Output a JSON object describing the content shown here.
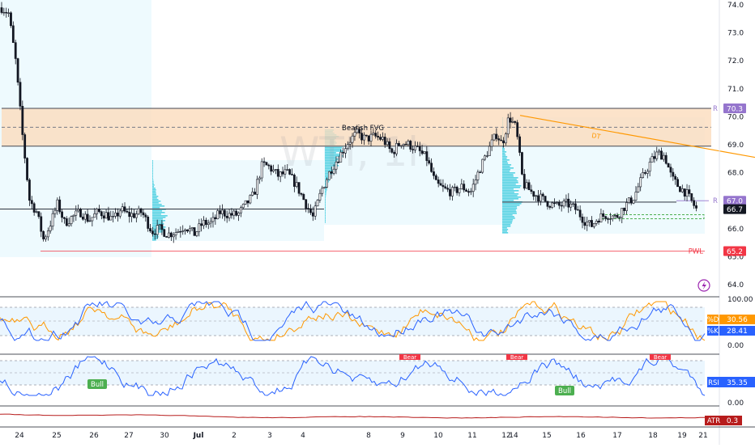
{
  "chart_data": {
    "type": "candlestick",
    "symbol_watermark": "WTI, 1h",
    "price_axis": {
      "ticks": [
        "74.0",
        "73.0",
        "72.0",
        "71.0",
        "70.0",
        "69.0",
        "68.0",
        "67.0",
        "66.0",
        "65.0",
        "64.0"
      ],
      "range": [
        63.7,
        74.2
      ]
    },
    "x_axis": {
      "labels": [
        "24",
        "25",
        "26",
        "27",
        "30",
        "Jul",
        "2",
        "3",
        "4",
        "8",
        "9",
        "10",
        "11",
        "12",
        "14",
        "15",
        "16",
        "17",
        "18",
        "19",
        "21"
      ]
    },
    "price_series_anchors": [
      [
        0.0,
        73.9
      ],
      [
        0.4,
        73.7
      ],
      [
        0.8,
        72.0
      ],
      [
        1.2,
        69.3
      ],
      [
        1.6,
        67.0
      ],
      [
        2.0,
        66.6
      ],
      [
        2.4,
        65.6
      ],
      [
        2.8,
        66.2
      ],
      [
        3.2,
        66.9
      ],
      [
        3.6,
        66.2
      ],
      [
        4.0,
        66.4
      ],
      [
        4.5,
        66.6
      ],
      [
        5.0,
        66.3
      ],
      [
        5.5,
        66.6
      ],
      [
        6.0,
        66.5
      ],
      [
        6.4,
        66.3
      ],
      [
        6.8,
        66.7
      ],
      [
        7.2,
        66.5
      ],
      [
        7.6,
        66.5
      ],
      [
        8.0,
        66.6
      ],
      [
        8.6,
        65.9
      ],
      [
        9.0,
        66.0
      ],
      [
        9.5,
        65.8
      ],
      [
        10.0,
        65.9
      ],
      [
        10.5,
        66.1
      ],
      [
        11.0,
        65.8
      ],
      [
        11.5,
        66.2
      ],
      [
        12.0,
        66.2
      ],
      [
        12.5,
        66.6
      ],
      [
        13.0,
        66.5
      ],
      [
        13.5,
        66.5
      ],
      [
        14.0,
        66.9
      ],
      [
        14.4,
        67.2
      ],
      [
        14.9,
        68.3
      ],
      [
        15.3,
        68.2
      ],
      [
        15.8,
        67.9
      ],
      [
        16.3,
        68.0
      ],
      [
        16.8,
        67.6
      ],
      [
        17.3,
        67.0
      ],
      [
        17.8,
        66.4
      ],
      [
        18.3,
        67.4
      ],
      [
        18.8,
        68.1
      ],
      [
        19.3,
        68.6
      ],
      [
        19.8,
        69.1
      ],
      [
        20.3,
        69.4
      ],
      [
        20.8,
        69.2
      ],
      [
        21.3,
        69.3
      ],
      [
        21.8,
        69.2
      ],
      [
        22.3,
        68.7
      ],
      [
        22.8,
        69.1
      ],
      [
        23.3,
        69.0
      ],
      [
        23.8,
        68.8
      ],
      [
        24.3,
        68.5
      ],
      [
        24.8,
        67.6
      ],
      [
        25.3,
        67.4
      ],
      [
        25.8,
        67.3
      ],
      [
        26.3,
        67.5
      ],
      [
        26.8,
        67.3
      ],
      [
        27.3,
        68.1
      ],
      [
        27.8,
        68.8
      ],
      [
        28.3,
        69.4
      ],
      [
        28.6,
        69.0
      ],
      [
        29.0,
        70.0
      ],
      [
        29.4,
        69.6
      ],
      [
        29.8,
        67.6
      ],
      [
        30.3,
        67.3
      ],
      [
        30.8,
        67.1
      ],
      [
        31.3,
        66.9
      ],
      [
        31.8,
        66.8
      ],
      [
        32.3,
        66.9
      ],
      [
        32.8,
        66.7
      ],
      [
        33.3,
        66.3
      ],
      [
        33.7,
        66.1
      ],
      [
        34.1,
        66.4
      ],
      [
        34.6,
        66.5
      ],
      [
        35.1,
        66.4
      ],
      [
        35.6,
        66.8
      ],
      [
        36.1,
        67.1
      ],
      [
        36.6,
        67.8
      ],
      [
        37.1,
        68.4
      ],
      [
        37.5,
        68.7
      ],
      [
        37.9,
        68.6
      ],
      [
        38.3,
        67.8
      ],
      [
        38.7,
        67.5
      ],
      [
        39.1,
        67.3
      ],
      [
        39.4,
        67.0
      ],
      [
        39.7,
        66.7
      ]
    ],
    "zones": [
      {
        "label": "Bearish FVG",
        "top": 70.3,
        "bottom": 68.95
      }
    ],
    "annotations": {
      "dt_label": "DT",
      "r_upper": "R",
      "r_lower": "R",
      "pwl": "PWL",
      "bull_labels": [
        "Bull",
        "Bull"
      ],
      "bear_labels": [
        "Bear",
        "Bear",
        "Bear"
      ]
    },
    "price_badges": [
      {
        "text": "70.3",
        "value": 70.3,
        "color": "#9575cd"
      },
      {
        "text": "67.0",
        "value": 67.0,
        "color": "#9575cd"
      },
      {
        "text": "66.7",
        "value": 66.7,
        "color": "#131722"
      },
      {
        "text": "65.2",
        "value": 65.2,
        "color": "#f23645"
      }
    ],
    "stoch": {
      "ticks": [
        "100.00",
        "0.00"
      ],
      "d_label": "%D",
      "d_value": "30.56",
      "d_color": "#ff9800",
      "k_label": "%K",
      "k_value": "28.41",
      "k_color": "#2962ff"
    },
    "rsi": {
      "ticks": [
        "0.00"
      ],
      "label": "RSI",
      "value": "35.35",
      "color": "#2962ff"
    },
    "atr": {
      "label": "ATR",
      "value": "0.3",
      "color": "#b71c1c"
    }
  }
}
